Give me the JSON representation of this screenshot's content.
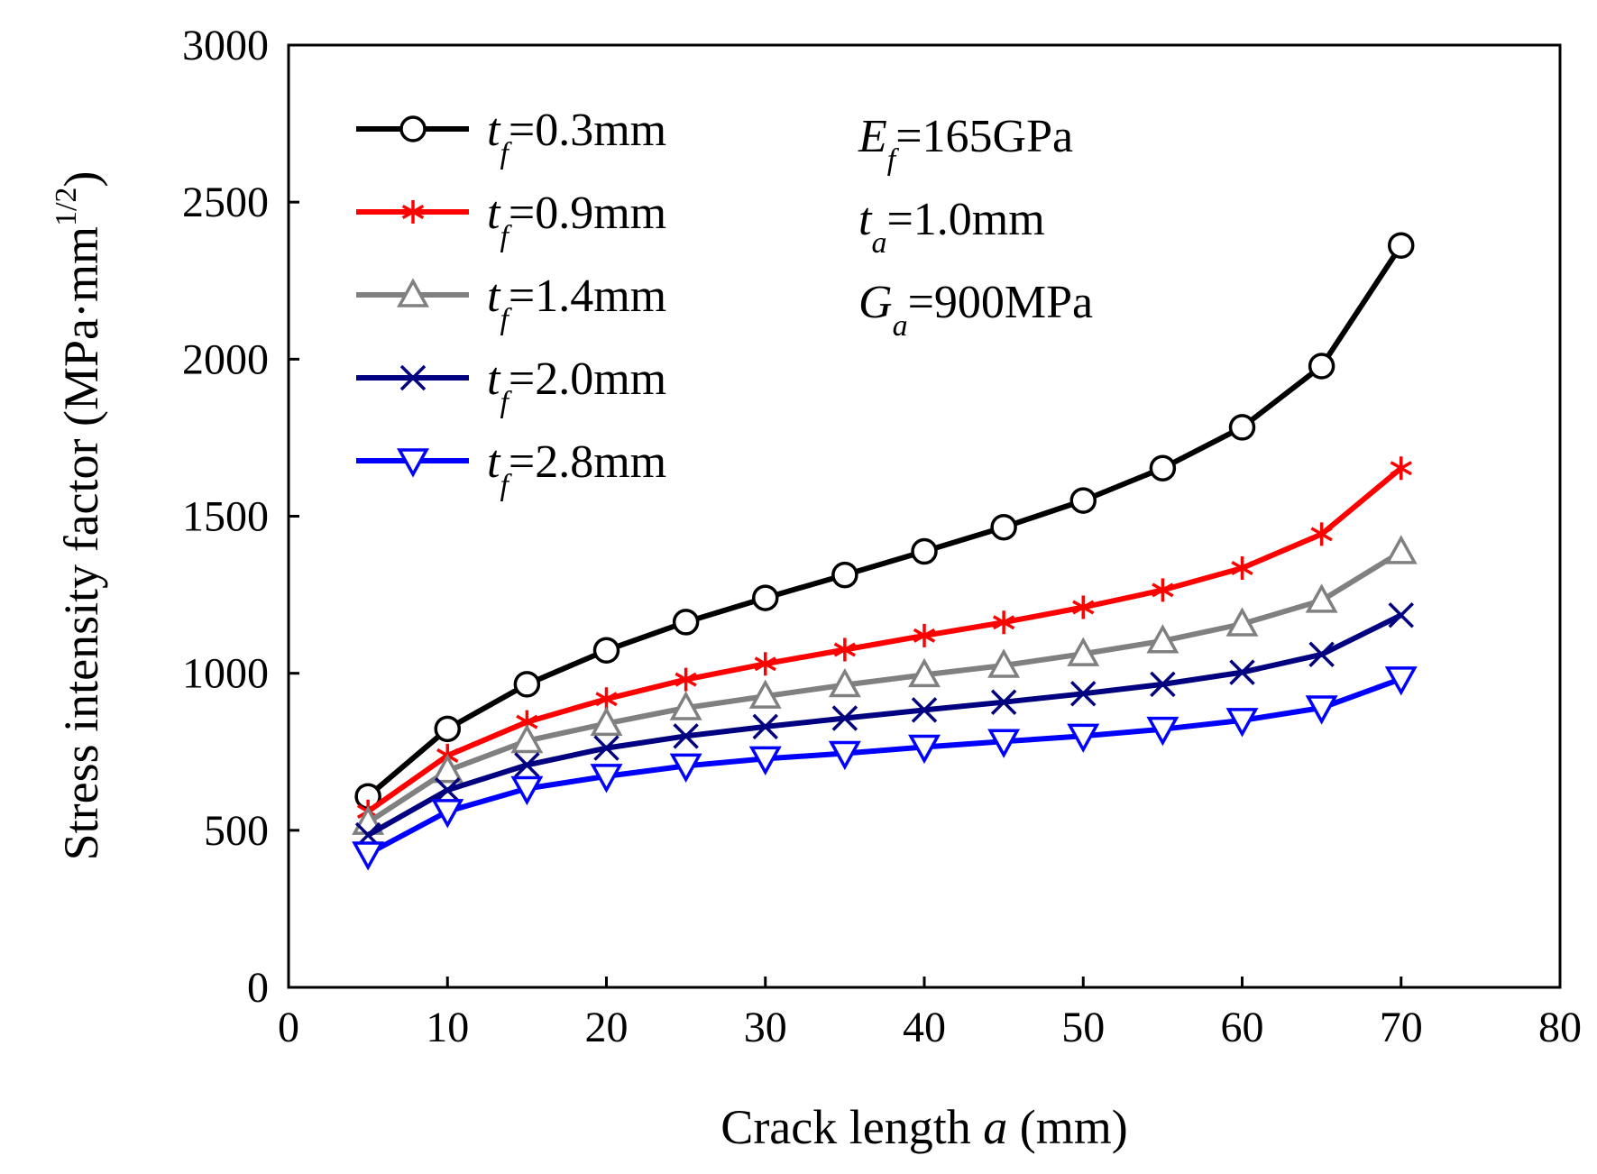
{
  "chart_data": {
    "type": "line",
    "xlabel": {
      "prefix": "Crack length ",
      "var": "a",
      "suffix": " (mm)"
    },
    "ylabel": {
      "prefix": "Stress intensity factor (MPa·mm",
      "sup": "1/2",
      "suffix": ")"
    },
    "xlim": [
      0,
      80
    ],
    "ylim": [
      0,
      3000
    ],
    "xticks": [
      0,
      10,
      20,
      30,
      40,
      50,
      60,
      70,
      80
    ],
    "yticks": [
      0,
      500,
      1000,
      1500,
      2000,
      2500,
      3000
    ],
    "grid": false,
    "legend_position": "top-left",
    "x": [
      5,
      10,
      15,
      20,
      25,
      30,
      35,
      40,
      45,
      50,
      55,
      60,
      65,
      70
    ],
    "series": [
      {
        "name": "=0.3mm",
        "label_var": "t",
        "label_sub": "f",
        "color": "#000000",
        "marker": "circle",
        "values": [
          608,
          823,
          965,
          1073,
          1163,
          1240,
          1313,
          1388,
          1465,
          1550,
          1653,
          1783,
          1978,
          2362
        ]
      },
      {
        "name": "=0.9mm",
        "label_var": "t",
        "label_sub": "f",
        "color": "#ff0000",
        "marker": "asterisk",
        "values": [
          560,
          738,
          845,
          918,
          980,
          1030,
          1075,
          1120,
          1162,
          1210,
          1265,
          1335,
          1443,
          1653
        ]
      },
      {
        "name": "=1.4mm",
        "label_var": "t",
        "label_sub": "f",
        "color": "#808080",
        "marker": "triangle-up",
        "values": [
          525,
          690,
          785,
          840,
          890,
          927,
          963,
          995,
          1025,
          1062,
          1103,
          1157,
          1232,
          1387
        ]
      },
      {
        "name": "=2.0mm",
        "label_var": "t",
        "label_sub": "f",
        "color": "#000080",
        "marker": "x",
        "values": [
          485,
          628,
          708,
          762,
          800,
          830,
          857,
          883,
          908,
          935,
          965,
          1003,
          1060,
          1185
        ]
      },
      {
        "name": "=2.8mm",
        "label_var": "t",
        "label_sub": "f",
        "color": "#0000ff",
        "marker": "triangle-down",
        "values": [
          425,
          560,
          633,
          672,
          705,
          728,
          745,
          765,
          783,
          800,
          822,
          850,
          890,
          982
        ]
      }
    ],
    "annotations": [
      {
        "var": "E",
        "sub": "f",
        "text": "=165GPa"
      },
      {
        "var": "t",
        "sub": "a",
        "text": "=1.0mm"
      },
      {
        "var": "G",
        "sub": "a",
        "text": "=900MPa"
      }
    ]
  }
}
